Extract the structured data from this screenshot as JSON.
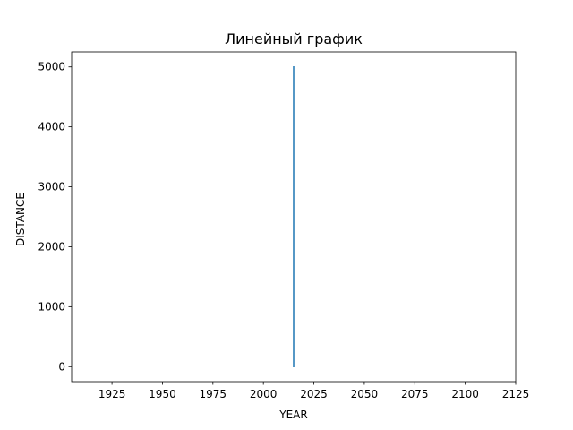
{
  "chart_data": {
    "type": "line",
    "title": "Линейный график",
    "xlabel": "YEAR",
    "ylabel": "DISTANCE",
    "xlim": [
      1905,
      2125
    ],
    "ylim": [
      -250,
      5250
    ],
    "xticks": [
      1925,
      1950,
      1975,
      2000,
      2025,
      2050,
      2075,
      2100,
      2125
    ],
    "yticks": [
      0,
      1000,
      2000,
      3000,
      4000,
      5000
    ],
    "grid": false,
    "series": [
      {
        "color": "#1f77b4",
        "x": [
          2015,
          2015
        ],
        "y": [
          0,
          5000
        ]
      }
    ]
  }
}
